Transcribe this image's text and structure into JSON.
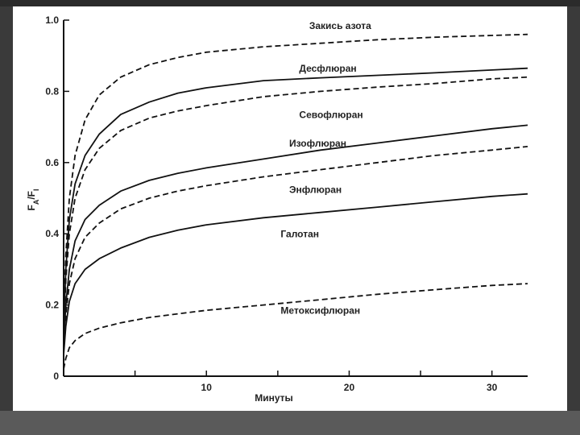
{
  "slide": {
    "background": "#3a3a3a",
    "panel_color": "#ffffff"
  },
  "chart_data": {
    "type": "line",
    "title": "",
    "xlabel": "Минуты",
    "ylabel_main": "F",
    "ylabel_sub_a": "A",
    "ylabel_sep": "/F",
    "ylabel_sub_i": "I",
    "xlim": [
      0,
      32.5
    ],
    "ylim": [
      0,
      1.0
    ],
    "x_ticks": [
      10,
      20,
      30
    ],
    "x_minor_ticks": [
      5,
      15,
      25
    ],
    "y_ticks": [
      0,
      0.2,
      0.4,
      0.6,
      0.8,
      1.0
    ],
    "y_tick_labels": [
      "0",
      "0.2",
      "0.4",
      "0.6",
      "0.8",
      "1.0"
    ],
    "x_tick_labels": [
      "10",
      "20",
      "30"
    ],
    "grid": false,
    "line_color": "#111111",
    "series": [
      {
        "name": "Закись азота",
        "style": "dashed",
        "x": [
          0,
          0.15,
          0.4,
          0.8,
          1.5,
          2.5,
          4,
          6,
          8,
          10,
          14,
          18,
          22,
          26,
          30,
          32.5
        ],
        "y": [
          0.16,
          0.34,
          0.5,
          0.62,
          0.72,
          0.79,
          0.84,
          0.875,
          0.895,
          0.91,
          0.925,
          0.935,
          0.945,
          0.952,
          0.957,
          0.96
        ]
      },
      {
        "name": "Десфлюран",
        "style": "solid",
        "x": [
          0,
          0.15,
          0.4,
          0.8,
          1.5,
          2.5,
          4,
          6,
          8,
          10,
          14,
          18,
          22,
          26,
          30,
          32.5
        ],
        "y": [
          0.13,
          0.3,
          0.44,
          0.54,
          0.62,
          0.68,
          0.735,
          0.77,
          0.795,
          0.81,
          0.83,
          0.838,
          0.845,
          0.852,
          0.86,
          0.865
        ]
      },
      {
        "name": "Севофлюран",
        "style": "dashed",
        "x": [
          0,
          0.15,
          0.4,
          0.8,
          1.5,
          2.5,
          4,
          6,
          8,
          10,
          14,
          18,
          22,
          26,
          30,
          32.5
        ],
        "y": [
          0.11,
          0.27,
          0.4,
          0.5,
          0.58,
          0.64,
          0.69,
          0.725,
          0.745,
          0.76,
          0.785,
          0.8,
          0.812,
          0.822,
          0.835,
          0.84
        ]
      },
      {
        "name": "Изофлюран",
        "style": "solid",
        "x": [
          0,
          0.15,
          0.4,
          0.8,
          1.5,
          2.5,
          4,
          6,
          8,
          10,
          14,
          18,
          22,
          26,
          30,
          32.5
        ],
        "y": [
          0.09,
          0.2,
          0.3,
          0.38,
          0.44,
          0.48,
          0.52,
          0.55,
          0.57,
          0.585,
          0.61,
          0.635,
          0.655,
          0.675,
          0.695,
          0.705
        ]
      },
      {
        "name": "Энфлюран",
        "style": "dashed",
        "x": [
          0,
          0.15,
          0.4,
          0.8,
          1.5,
          2.5,
          4,
          6,
          8,
          10,
          14,
          18,
          22,
          26,
          30,
          32.5
        ],
        "y": [
          0.08,
          0.17,
          0.26,
          0.33,
          0.39,
          0.43,
          0.47,
          0.5,
          0.52,
          0.535,
          0.56,
          0.58,
          0.6,
          0.62,
          0.635,
          0.645
        ]
      },
      {
        "name": "Галотан",
        "style": "solid",
        "x": [
          0,
          0.15,
          0.4,
          0.8,
          1.5,
          2.5,
          4,
          6,
          8,
          10,
          14,
          18,
          22,
          26,
          30,
          32.5
        ],
        "y": [
          0.06,
          0.14,
          0.21,
          0.26,
          0.3,
          0.33,
          0.36,
          0.39,
          0.41,
          0.425,
          0.445,
          0.46,
          0.475,
          0.49,
          0.505,
          0.512
        ]
      },
      {
        "name": "Метоксифлюран",
        "style": "dashed",
        "x": [
          0,
          0.15,
          0.4,
          0.8,
          1.5,
          2.5,
          4,
          6,
          8,
          10,
          14,
          18,
          22,
          26,
          30,
          32.5
        ],
        "y": [
          0.02,
          0.05,
          0.08,
          0.1,
          0.12,
          0.135,
          0.15,
          0.165,
          0.175,
          0.185,
          0.2,
          0.215,
          0.23,
          0.243,
          0.255,
          0.26
        ]
      }
    ],
    "annotations": [
      {
        "text": "Закись азота",
        "x": 17.2,
        "y": 0.975
      },
      {
        "text": "Десфлюран",
        "x": 16.5,
        "y": 0.855
      },
      {
        "text": "Севофлюран",
        "x": 16.5,
        "y": 0.725
      },
      {
        "text": "Изофлюран",
        "x": 15.8,
        "y": 0.645
      },
      {
        "text": "Энфлюран",
        "x": 15.8,
        "y": 0.515
      },
      {
        "text": "Галотан",
        "x": 15.2,
        "y": 0.39
      },
      {
        "text": "Метоксифлюран",
        "x": 15.2,
        "y": 0.175
      }
    ]
  }
}
